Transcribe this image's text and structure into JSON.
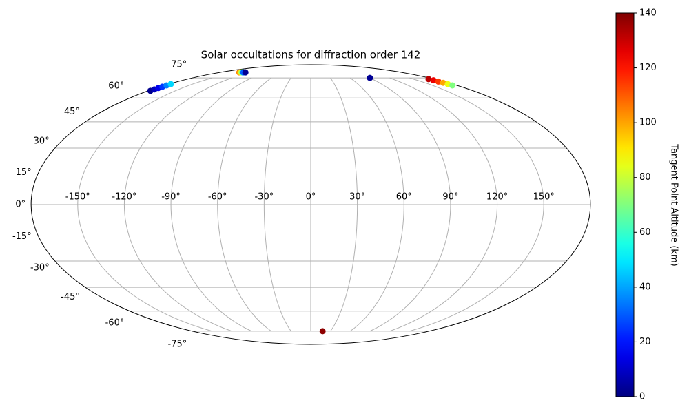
{
  "chart_data": {
    "type": "scatter",
    "projection": "mollweide",
    "title": "Solar occultations for diffraction order 142",
    "x": [
      -141,
      -139,
      -137,
      -135,
      -133,
      -129,
      90,
      172,
      172.5,
      173,
      173.5,
      174,
      174.5,
      -177.6,
      -177.6,
      -177.6,
      -177.6,
      -177.6,
      -177.6,
      18
    ],
    "y": [
      80,
      80,
      80,
      80,
      80,
      80,
      75,
      74,
      73,
      72,
      71,
      70,
      69,
      65,
      66,
      67,
      68,
      69,
      70,
      -75
    ],
    "c": [
      105,
      95,
      80,
      60,
      30,
      3,
      3,
      132,
      125,
      115,
      100,
      85,
      70,
      2,
      8,
      15,
      25,
      35,
      47,
      138
    ],
    "xlim": [
      -180,
      180
    ],
    "ylim": [
      -90,
      90
    ],
    "xticks": [
      {
        "value": -150,
        "label": "-150°"
      },
      {
        "value": -120,
        "label": "-120°"
      },
      {
        "value": -90,
        "label": "-90°"
      },
      {
        "value": -60,
        "label": "-60°"
      },
      {
        "value": -30,
        "label": "-30°"
      },
      {
        "value": 0,
        "label": "0°"
      },
      {
        "value": 30,
        "label": "30°"
      },
      {
        "value": 60,
        "label": "60°"
      },
      {
        "value": 90,
        "label": "90°"
      },
      {
        "value": 120,
        "label": "120°"
      },
      {
        "value": 150,
        "label": "150°"
      }
    ],
    "yticks": [
      {
        "value": -75,
        "label": "-75°"
      },
      {
        "value": -60,
        "label": "-60°"
      },
      {
        "value": -45,
        "label": "-45°"
      },
      {
        "value": -30,
        "label": "-30°"
      },
      {
        "value": -15,
        "label": "-15°"
      },
      {
        "value": 0,
        "label": "0°"
      },
      {
        "value": 15,
        "label": "15°"
      },
      {
        "value": 30,
        "label": "30°"
      },
      {
        "value": 45,
        "label": "45°"
      },
      {
        "value": 60,
        "label": "60°"
      },
      {
        "value": 75,
        "label": "75°"
      }
    ],
    "grid": true,
    "colormap": "jet",
    "colorbar_label": "Tangent Point Altitude (km)",
    "clim": [
      0,
      140
    ],
    "cticks": [
      0,
      20,
      40,
      60,
      80,
      100,
      120,
      140
    ]
  }
}
